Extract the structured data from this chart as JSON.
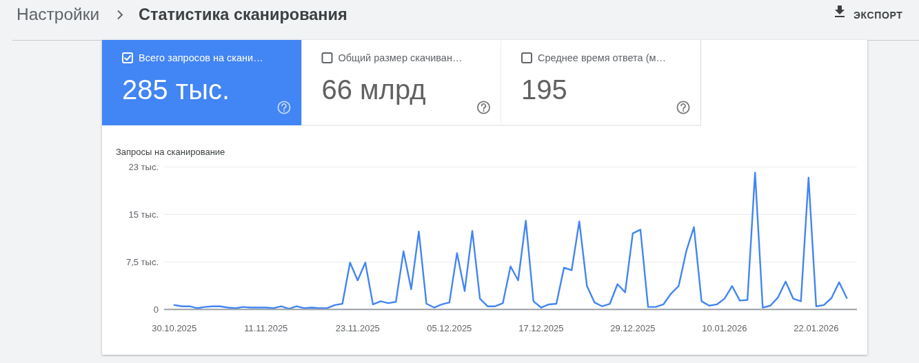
{
  "chart_data": [
    {
      "type": "other",
      "title": "Статистика сканирования",
      "annotations": [
        "Настройки",
        "ЭКСПОРТ"
      ]
    },
    {
      "type": "other",
      "title": "Всего запросов на скани…",
      "annotations": [
        "285 тыс."
      ]
    },
    {
      "type": "other",
      "title": "Общий размер скачиван…",
      "annotations": [
        "66 млрд"
      ]
    },
    {
      "type": "other",
      "title": "Среднее время ответа (м…",
      "annotations": [
        "195"
      ]
    },
    {
      "type": "line",
      "ylabel": "Запросы на сканирование",
      "color": "#4285f4",
      "grid": "y",
      "x": [
        "2025-10-30",
        "2025-10-31",
        "2025-11-01",
        "2025-11-02",
        "2025-11-03",
        "2025-11-04",
        "2025-11-05",
        "2025-11-06",
        "2025-11-07",
        "2025-11-08",
        "2025-11-09",
        "2025-11-10",
        "2025-11-11",
        "2025-11-12",
        "2025-11-13",
        "2025-11-14",
        "2025-11-15",
        "2025-11-16",
        "2025-11-17",
        "2025-11-18",
        "2025-11-19",
        "2025-11-20",
        "2025-11-21",
        "2025-11-22",
        "2025-11-23",
        "2025-11-24",
        "2025-11-25",
        "2025-11-26",
        "2025-11-27",
        "2025-11-28",
        "2025-11-29",
        "2025-11-30",
        "2025-12-01",
        "2025-12-02",
        "2025-12-03",
        "2025-12-04",
        "2025-12-05",
        "2025-12-06",
        "2025-12-07",
        "2025-12-08",
        "2025-12-09",
        "2025-12-10",
        "2025-12-11",
        "2025-12-12",
        "2025-12-13",
        "2025-12-14",
        "2025-12-15",
        "2025-12-16",
        "2025-12-17",
        "2025-12-18",
        "2025-12-19",
        "2025-12-20",
        "2025-12-21",
        "2025-12-22",
        "2025-12-23",
        "2025-12-24",
        "2025-12-25",
        "2025-12-26",
        "2025-12-27",
        "2025-12-28",
        "2025-12-29",
        "2025-12-30",
        "2025-12-31",
        "2026-01-01",
        "2026-01-02",
        "2026-01-03",
        "2026-01-04",
        "2026-01-05",
        "2026-01-06",
        "2026-01-07",
        "2026-01-08",
        "2026-01-09",
        "2026-01-10",
        "2026-01-11",
        "2026-01-12",
        "2026-01-13",
        "2026-01-14",
        "2026-01-15",
        "2026-01-16",
        "2026-01-17",
        "2026-01-18",
        "2026-01-19",
        "2026-01-20",
        "2026-01-21",
        "2026-01-22",
        "2026-01-23",
        "2026-01-24",
        "2026-01-25",
        "2026-01-26"
      ],
      "values": [
        0.7,
        0.5,
        0.5,
        0.2,
        0.4,
        0.5,
        0.5,
        0.3,
        0.2,
        0.4,
        0.3,
        0.3,
        0.3,
        0.2,
        0.5,
        0.1,
        0.5,
        0.2,
        0.3,
        0.2,
        0.2,
        0.7,
        0.9,
        7.4,
        4.6,
        7.4,
        0.8,
        1.3,
        1.0,
        1.2,
        9.2,
        3.2,
        12.3,
        0.9,
        0.3,
        0.8,
        1.1,
        8.9,
        2.9,
        12.4,
        1.7,
        0.5,
        0.5,
        1.0,
        6.8,
        4.6,
        14.0,
        1.3,
        0.3,
        0.8,
        0.9,
        6.6,
        6.2,
        13.9,
        3.7,
        1.1,
        0.5,
        0.9,
        4.0,
        2.7,
        12.0,
        12.6,
        0.4,
        0.4,
        0.8,
        2.5,
        3.7,
        9.2,
        13.0,
        1.3,
        0.6,
        0.8,
        1.7,
        3.7,
        1.4,
        1.5,
        21.6,
        0.3,
        0.6,
        1.9,
        4.4,
        1.7,
        1.3,
        20.8,
        0.5,
        0.7,
        1.8,
        4.3,
        1.8
      ],
      "xlim": [
        "2025-10-28T16:00",
        "2026-01-27T08:00"
      ],
      "xticks": [
        {
          "value": "2025-10-30",
          "label": "30.10.2025"
        },
        {
          "value": "2025-11-11",
          "label": "11.11.2025"
        },
        {
          "value": "2025-11-23",
          "label": "23.11.2025"
        },
        {
          "value": "2025-12-05",
          "label": "05.12.2025"
        },
        {
          "value": "2025-12-17",
          "label": "17.12.2025"
        },
        {
          "value": "2025-12-29",
          "label": "29.12.2025"
        },
        {
          "value": "2026-01-10",
          "label": "10.01.2026"
        },
        {
          "value": "2026-01-22",
          "label": "22.01.2026"
        }
      ],
      "ylim": [
        0,
        22.5
      ],
      "yticks": [
        0,
        {
          "value": 7.5,
          "label": "7,5 тыс."
        },
        {
          "value": 15,
          "label": "15 тыс."
        },
        {
          "value": 22.5,
          "label": "23 тыс."
        }
      ]
    }
  ]
}
